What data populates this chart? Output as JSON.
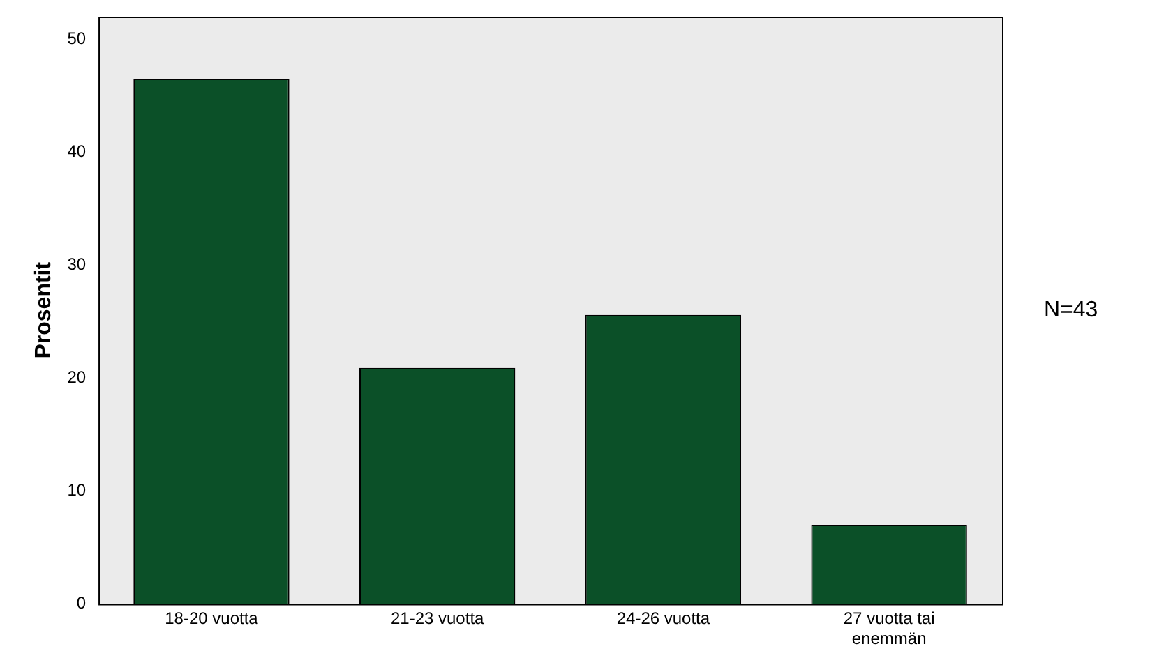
{
  "chart_data": {
    "type": "bar",
    "ylabel": "Prosentit",
    "categories": [
      "18-20 vuotta",
      "21-23 vuotta",
      "24-26 vuotta",
      "27 vuotta tai enemmän"
    ],
    "values": [
      46.5,
      20.9,
      25.6,
      7.0
    ],
    "color": "#0b5028",
    "ylim": [
      0,
      52
    ],
    "yticks": [
      0,
      10,
      20,
      30,
      40,
      50
    ],
    "grid": false,
    "legend": false,
    "annotations": [
      "N=43"
    ]
  }
}
